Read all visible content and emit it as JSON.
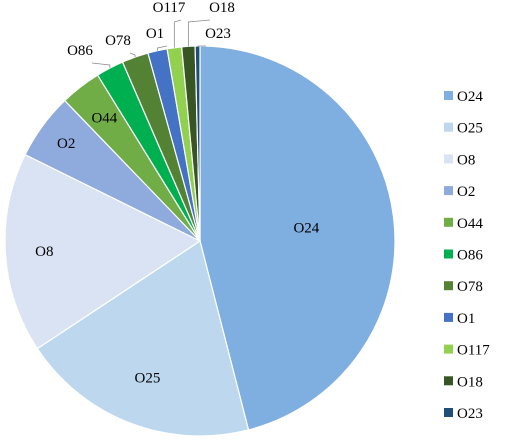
{
  "chart_data": {
    "type": "pie",
    "title": "",
    "slices": [
      {
        "label": "O24",
        "value": 46.0,
        "color": "#7faee0"
      },
      {
        "label": "O25",
        "value": 19.7,
        "color": "#bdd7ee"
      },
      {
        "label": "O8",
        "value": 16.6,
        "color": "#dae3f3"
      },
      {
        "label": "O2",
        "value": 5.5,
        "color": "#8faadc"
      },
      {
        "label": "O44",
        "value": 3.4,
        "color": "#70ad47"
      },
      {
        "label": "O86",
        "value": 2.3,
        "color": "#00b050"
      },
      {
        "label": "O78",
        "value": 2.2,
        "color": "#548235"
      },
      {
        "label": "O1",
        "value": 1.6,
        "color": "#4472c4"
      },
      {
        "label": "O117",
        "value": 1.2,
        "color": "#92d050"
      },
      {
        "label": "O18",
        "value": 1.1,
        "color": "#375623"
      },
      {
        "label": "O23",
        "value": 0.4,
        "color": "#1f4e79"
      }
    ],
    "legend_position": "right"
  }
}
